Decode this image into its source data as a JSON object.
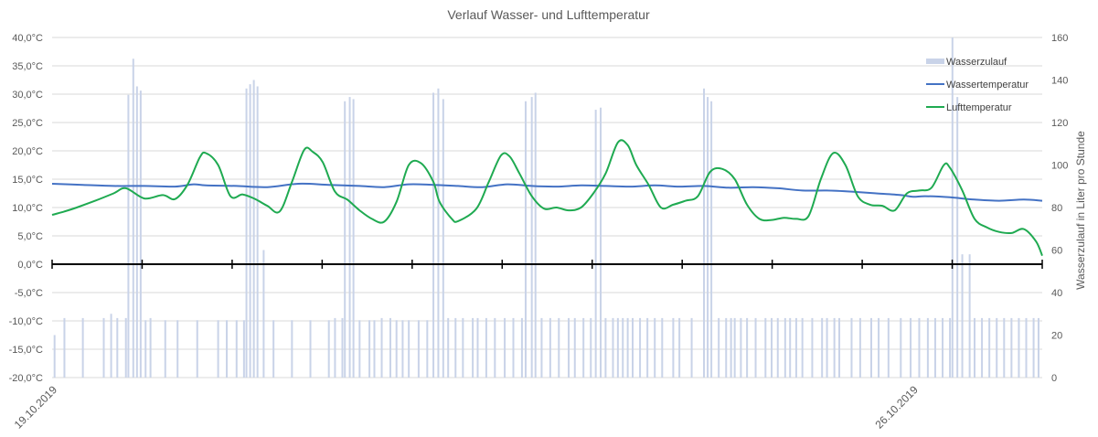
{
  "chart_data": {
    "type": "line",
    "title": "Verlauf Wasser- und Lufttemperatur",
    "y_left": {
      "range": [
        -20,
        40
      ],
      "ticks": [
        "-20,0°C",
        "-15,0°C",
        "-10,0°C",
        "-5,0°C",
        "0,0°C",
        "5,0°C",
        "10,0°C",
        "15,0°C",
        "20,0°C",
        "25,0°C",
        "30,0°C",
        "35,0°C",
        "40,0°C"
      ]
    },
    "y_right": {
      "label": "Wasserzulauf in Liter pro Stunde",
      "range": [
        0,
        160
      ],
      "ticks": [
        "0",
        "20",
        "40",
        "60",
        "80",
        "100",
        "120",
        "140",
        "160"
      ]
    },
    "x_labels": [
      {
        "text": "19.10.2019",
        "day": 0
      },
      {
        "text": "26.10.2019",
        "day": 7
      }
    ],
    "x_range_days": [
      0,
      8.05
    ],
    "grid": "horizontal",
    "legend_position": "top-right",
    "series": [
      {
        "name": "Wasserzulauf",
        "kind": "bar",
        "axis": "right",
        "color": "#c9d3e8",
        "values_l_per_h": [
          [
            0.02,
            20
          ],
          [
            0.1,
            28
          ],
          [
            0.25,
            28
          ],
          [
            0.42,
            28
          ],
          [
            0.48,
            30
          ],
          [
            0.53,
            28
          ],
          [
            0.6,
            28
          ],
          [
            0.62,
            133
          ],
          [
            0.66,
            150
          ],
          [
            0.69,
            137
          ],
          [
            0.72,
            135
          ],
          [
            0.76,
            27
          ],
          [
            0.8,
            28
          ],
          [
            0.92,
            27
          ],
          [
            1.02,
            27
          ],
          [
            1.18,
            27
          ],
          [
            1.35,
            27
          ],
          [
            1.42,
            27
          ],
          [
            1.5,
            27
          ],
          [
            1.56,
            27
          ],
          [
            1.58,
            136
          ],
          [
            1.61,
            138
          ],
          [
            1.64,
            140
          ],
          [
            1.67,
            137
          ],
          [
            1.72,
            60
          ],
          [
            1.8,
            27
          ],
          [
            1.95,
            27
          ],
          [
            2.1,
            27
          ],
          [
            2.25,
            27
          ],
          [
            2.3,
            28
          ],
          [
            2.36,
            28
          ],
          [
            2.38,
            130
          ],
          [
            2.42,
            132
          ],
          [
            2.45,
            131
          ],
          [
            2.5,
            27
          ],
          [
            2.58,
            27
          ],
          [
            2.62,
            27
          ],
          [
            2.68,
            28
          ],
          [
            2.75,
            28
          ],
          [
            2.8,
            27
          ],
          [
            2.85,
            27
          ],
          [
            2.9,
            27
          ],
          [
            2.98,
            27
          ],
          [
            3.05,
            27
          ],
          [
            3.1,
            134
          ],
          [
            3.14,
            136
          ],
          [
            3.18,
            131
          ],
          [
            3.22,
            28
          ],
          [
            3.28,
            28
          ],
          [
            3.34,
            28
          ],
          [
            3.42,
            28
          ],
          [
            3.46,
            28
          ],
          [
            3.53,
            28
          ],
          [
            3.6,
            28
          ],
          [
            3.68,
            28
          ],
          [
            3.75,
            28
          ],
          [
            3.82,
            28
          ],
          [
            3.85,
            130
          ],
          [
            3.9,
            132
          ],
          [
            3.93,
            134
          ],
          [
            3.98,
            28
          ],
          [
            4.05,
            28
          ],
          [
            4.12,
            28
          ],
          [
            4.2,
            28
          ],
          [
            4.25,
            28
          ],
          [
            4.32,
            28
          ],
          [
            4.38,
            28
          ],
          [
            4.42,
            126
          ],
          [
            4.46,
            127
          ],
          [
            4.5,
            28
          ],
          [
            4.56,
            28
          ],
          [
            4.6,
            28
          ],
          [
            4.64,
            28
          ],
          [
            4.68,
            28
          ],
          [
            4.72,
            28
          ],
          [
            4.78,
            28
          ],
          [
            4.84,
            28
          ],
          [
            4.9,
            28
          ],
          [
            4.96,
            28
          ],
          [
            5.05,
            28
          ],
          [
            5.1,
            28
          ],
          [
            5.2,
            28
          ],
          [
            5.3,
            136
          ],
          [
            5.33,
            132
          ],
          [
            5.36,
            130
          ],
          [
            5.42,
            28
          ],
          [
            5.48,
            28
          ],
          [
            5.52,
            28
          ],
          [
            5.55,
            28
          ],
          [
            5.6,
            28
          ],
          [
            5.65,
            28
          ],
          [
            5.72,
            28
          ],
          [
            5.8,
            28
          ],
          [
            5.85,
            28
          ],
          [
            5.9,
            28
          ],
          [
            5.96,
            28
          ],
          [
            6.0,
            28
          ],
          [
            6.05,
            28
          ],
          [
            6.1,
            28
          ],
          [
            6.18,
            28
          ],
          [
            6.26,
            28
          ],
          [
            6.3,
            28
          ],
          [
            6.36,
            28
          ],
          [
            6.4,
            28
          ],
          [
            6.5,
            28
          ],
          [
            6.57,
            28
          ],
          [
            6.66,
            28
          ],
          [
            6.72,
            28
          ],
          [
            6.8,
            28
          ],
          [
            6.9,
            28
          ],
          [
            6.98,
            28
          ],
          [
            7.05,
            28
          ],
          [
            7.12,
            28
          ],
          [
            7.18,
            28
          ],
          [
            7.24,
            28
          ],
          [
            7.3,
            28
          ],
          [
            7.32,
            160
          ],
          [
            7.36,
            132
          ],
          [
            7.4,
            58
          ],
          [
            7.46,
            58
          ],
          [
            7.5,
            28
          ],
          [
            7.56,
            28
          ],
          [
            7.62,
            28
          ],
          [
            7.68,
            28
          ],
          [
            7.74,
            28
          ],
          [
            7.8,
            28
          ],
          [
            7.86,
            28
          ],
          [
            7.92,
            28
          ],
          [
            7.98,
            28
          ],
          [
            8.02,
            28
          ]
        ]
      },
      {
        "name": "Wassertemperatur",
        "kind": "line",
        "axis": "left",
        "color": "#4472c4",
        "points_c": [
          [
            0,
            14.2
          ],
          [
            0.25,
            14
          ],
          [
            0.5,
            13.8
          ],
          [
            0.75,
            13.8
          ],
          [
            1.0,
            13.7
          ],
          [
            1.15,
            14.1
          ],
          [
            1.25,
            13.9
          ],
          [
            1.5,
            13.8
          ],
          [
            1.75,
            13.6
          ],
          [
            2.0,
            14.2
          ],
          [
            2.25,
            14.0
          ],
          [
            2.5,
            13.8
          ],
          [
            2.7,
            13.6
          ],
          [
            2.9,
            14.1
          ],
          [
            3.1,
            14.0
          ],
          [
            3.3,
            13.8
          ],
          [
            3.5,
            13.6
          ],
          [
            3.7,
            14.1
          ],
          [
            3.9,
            13.8
          ],
          [
            4.1,
            13.7
          ],
          [
            4.3,
            13.9
          ],
          [
            4.5,
            13.8
          ],
          [
            4.7,
            13.7
          ],
          [
            4.9,
            13.9
          ],
          [
            5.1,
            13.7
          ],
          [
            5.3,
            13.8
          ],
          [
            5.5,
            13.5
          ],
          [
            5.7,
            13.6
          ],
          [
            5.9,
            13.4
          ],
          [
            6.1,
            13.0
          ],
          [
            6.3,
            13.0
          ],
          [
            6.5,
            12.8
          ],
          [
            6.7,
            12.5
          ],
          [
            6.9,
            12.2
          ],
          [
            7.0,
            11.9
          ],
          [
            7.1,
            12.0
          ],
          [
            7.3,
            11.8
          ],
          [
            7.5,
            11.4
          ],
          [
            7.7,
            11.2
          ],
          [
            7.9,
            11.4
          ],
          [
            8.05,
            11.2
          ]
        ]
      },
      {
        "name": "Lufttemperatur",
        "kind": "line",
        "axis": "left",
        "color": "#1faa51",
        "points_c": [
          [
            0,
            8.7
          ],
          [
            0.1,
            9.3
          ],
          [
            0.2,
            10.0
          ],
          [
            0.35,
            11.2
          ],
          [
            0.5,
            12.5
          ],
          [
            0.6,
            13.4
          ],
          [
            0.75,
            11.6
          ],
          [
            0.9,
            12.2
          ],
          [
            1.0,
            11.5
          ],
          [
            1.1,
            14.0
          ],
          [
            1.2,
            18.8
          ],
          [
            1.25,
            19.6
          ],
          [
            1.35,
            17.5
          ],
          [
            1.45,
            12.0
          ],
          [
            1.55,
            12.3
          ],
          [
            1.65,
            11.5
          ],
          [
            1.75,
            10.3
          ],
          [
            1.85,
            9.3
          ],
          [
            1.95,
            14.5
          ],
          [
            2.05,
            20.2
          ],
          [
            2.12,
            19.8
          ],
          [
            2.2,
            18.0
          ],
          [
            2.3,
            12.8
          ],
          [
            2.4,
            11.4
          ],
          [
            2.5,
            9.5
          ],
          [
            2.6,
            8.0
          ],
          [
            2.7,
            7.5
          ],
          [
            2.8,
            11.0
          ],
          [
            2.9,
            17.5
          ],
          [
            3.0,
            17.8
          ],
          [
            3.1,
            14.5
          ],
          [
            3.15,
            11.0
          ],
          [
            3.25,
            8.0
          ],
          [
            3.3,
            7.6
          ],
          [
            3.45,
            9.8
          ],
          [
            3.55,
            14.5
          ],
          [
            3.65,
            19.2
          ],
          [
            3.72,
            19.0
          ],
          [
            3.8,
            16.0
          ],
          [
            3.9,
            12.0
          ],
          [
            4.0,
            9.8
          ],
          [
            4.1,
            10.0
          ],
          [
            4.2,
            9.5
          ],
          [
            4.3,
            10.0
          ],
          [
            4.4,
            12.5
          ],
          [
            4.5,
            16.0
          ],
          [
            4.6,
            21.5
          ],
          [
            4.68,
            21.0
          ],
          [
            4.75,
            17.5
          ],
          [
            4.85,
            14.0
          ],
          [
            4.95,
            10.0
          ],
          [
            5.05,
            10.5
          ],
          [
            5.15,
            11.2
          ],
          [
            5.25,
            12.0
          ],
          [
            5.35,
            16.3
          ],
          [
            5.45,
            16.8
          ],
          [
            5.55,
            15.0
          ],
          [
            5.65,
            10.5
          ],
          [
            5.75,
            8.0
          ],
          [
            5.85,
            7.8
          ],
          [
            5.95,
            8.2
          ],
          [
            6.05,
            8.0
          ],
          [
            6.15,
            8.5
          ],
          [
            6.25,
            15.0
          ],
          [
            6.35,
            19.6
          ],
          [
            6.45,
            17.5
          ],
          [
            6.55,
            12.0
          ],
          [
            6.65,
            10.5
          ],
          [
            6.75,
            10.3
          ],
          [
            6.85,
            9.5
          ],
          [
            6.95,
            12.5
          ],
          [
            7.05,
            13.0
          ],
          [
            7.15,
            13.5
          ],
          [
            7.25,
            17.5
          ],
          [
            7.3,
            17.0
          ],
          [
            7.4,
            13.0
          ],
          [
            7.5,
            8.0
          ],
          [
            7.6,
            6.5
          ],
          [
            7.7,
            5.7
          ],
          [
            7.8,
            5.5
          ],
          [
            7.9,
            6.2
          ],
          [
            8.0,
            4.0
          ],
          [
            8.05,
            1.5
          ]
        ]
      }
    ]
  }
}
